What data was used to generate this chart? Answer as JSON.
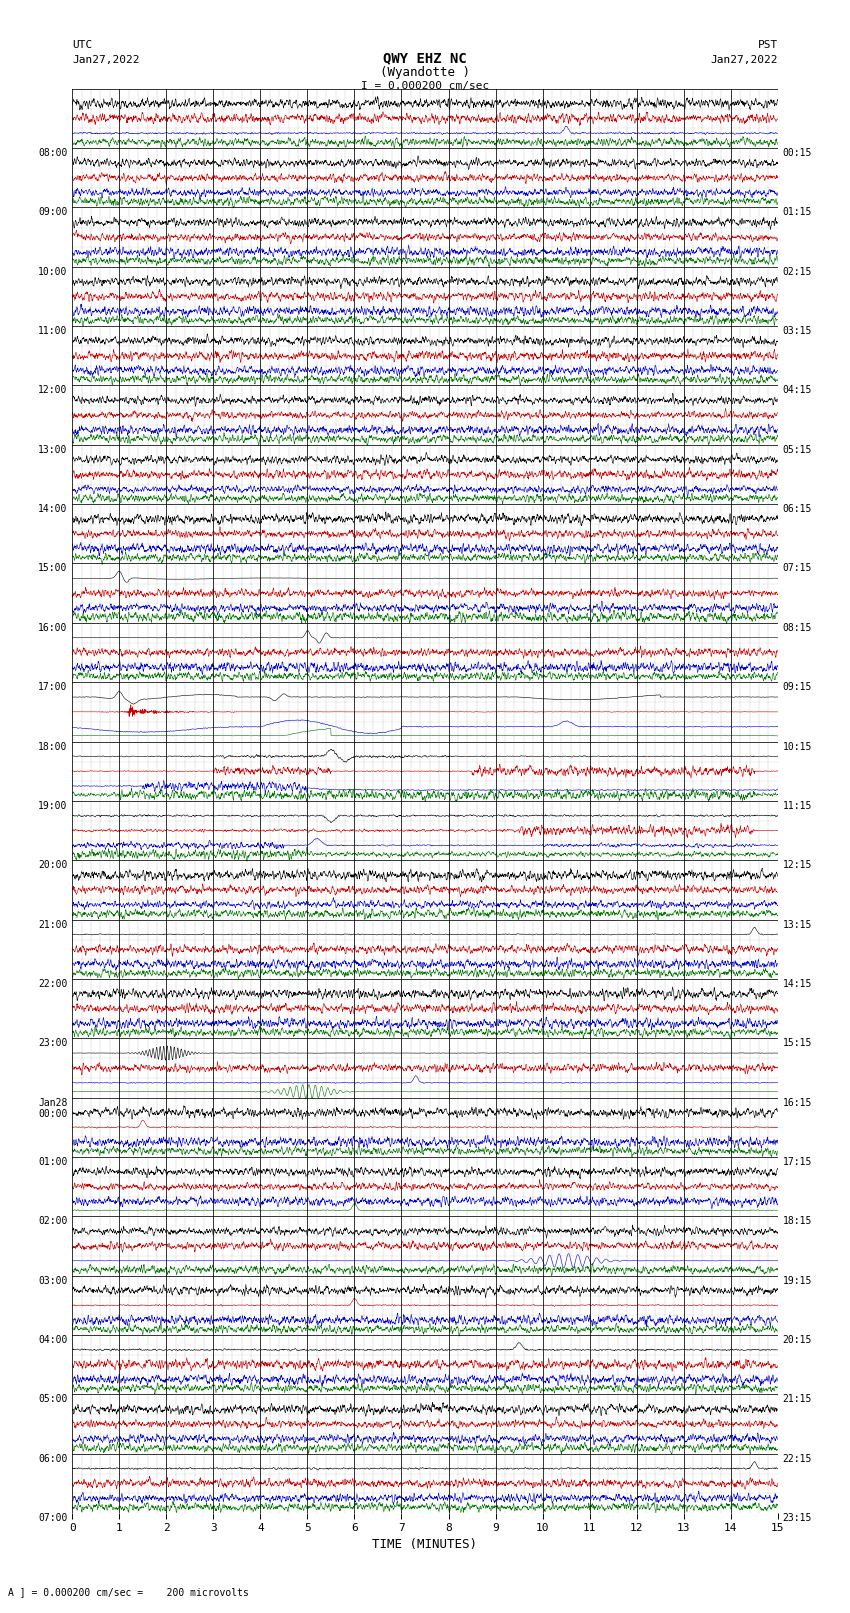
{
  "title_line1": "QWY EHZ NC",
  "title_line2": "(Wyandotte )",
  "scale_label": "I = 0.000200 cm/sec",
  "footer_label": "A ] = 0.000200 cm/sec =    200 microvolts",
  "utc_left": "UTC",
  "date_left": "Jan27,2022",
  "pst_right": "PST",
  "date_right": "Jan27,2022",
  "xlabel": "TIME (MINUTES)",
  "x_ticks": [
    0,
    1,
    2,
    3,
    4,
    5,
    6,
    7,
    8,
    9,
    10,
    11,
    12,
    13,
    14,
    15
  ],
  "xmin": 0,
  "xmax": 15,
  "background_color": "#ffffff",
  "grid_major_color": "#000000",
  "grid_minor_color": "#999999",
  "left_labels": [
    "08:00",
    "09:00",
    "10:00",
    "11:00",
    "12:00",
    "13:00",
    "14:00",
    "15:00",
    "16:00",
    "17:00",
    "18:00",
    "19:00",
    "20:00",
    "21:00",
    "22:00",
    "23:00",
    "Jan28\n00:00",
    "01:00",
    "02:00",
    "03:00",
    "04:00",
    "05:00",
    "06:00",
    "07:00"
  ],
  "right_labels": [
    "00:15",
    "01:15",
    "02:15",
    "03:15",
    "04:15",
    "05:15",
    "06:15",
    "07:15",
    "08:15",
    "09:15",
    "10:15",
    "11:15",
    "12:15",
    "13:15",
    "14:15",
    "15:15",
    "16:15",
    "17:15",
    "18:15",
    "19:15",
    "20:15",
    "21:15",
    "22:15",
    "23:15"
  ],
  "n_rows": 24,
  "colors": {
    "black": "#000000",
    "red": "#cc0000",
    "blue": "#0000cc",
    "green": "#007700"
  },
  "seed": 12345
}
